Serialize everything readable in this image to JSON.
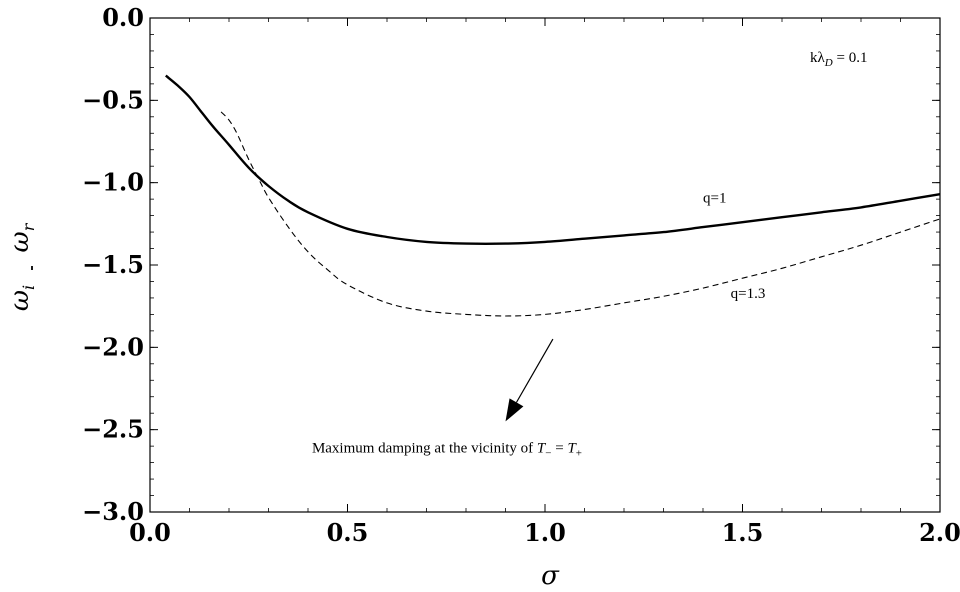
{
  "chart_data": {
    "type": "line",
    "xlabel": "σ",
    "ylabel": {
      "numerator": "ω",
      "numerator_sub": "i",
      "denominator": "ω",
      "denominator_sub": "r"
    },
    "xlim": [
      0.0,
      2.0
    ],
    "ylim": [
      -3.0,
      0.0
    ],
    "x_ticks": [
      "0.0",
      "0.5",
      "1.0",
      "1.5",
      "2.0"
    ],
    "y_ticks": [
      "0.0",
      "−0.5",
      "−1.0",
      "−1.5",
      "−2.0",
      "−2.5",
      "−3.0"
    ],
    "grid": false,
    "series": [
      {
        "name": "q=1",
        "style": "solid",
        "color": "#000000",
        "x": [
          0.04,
          0.07,
          0.1,
          0.13,
          0.16,
          0.2,
          0.25,
          0.3,
          0.35,
          0.4,
          0.5,
          0.6,
          0.7,
          0.8,
          0.9,
          1.0,
          1.1,
          1.2,
          1.3,
          1.4,
          1.5,
          1.6,
          1.7,
          1.8,
          1.9,
          2.0
        ],
        "y": [
          -0.35,
          -0.41,
          -0.48,
          -0.57,
          -0.66,
          -0.77,
          -0.91,
          -1.02,
          -1.11,
          -1.18,
          -1.28,
          -1.33,
          -1.36,
          -1.37,
          -1.37,
          -1.36,
          -1.34,
          -1.32,
          -1.3,
          -1.27,
          -1.24,
          -1.21,
          -1.18,
          -1.15,
          -1.11,
          -1.07
        ]
      },
      {
        "name": "q=1.3",
        "style": "dashed",
        "color": "#000000",
        "x": [
          0.18,
          0.2,
          0.22,
          0.25,
          0.28,
          0.3,
          0.35,
          0.4,
          0.45,
          0.5,
          0.6,
          0.7,
          0.8,
          0.9,
          1.0,
          1.1,
          1.2,
          1.3,
          1.4,
          1.5,
          1.6,
          1.7,
          1.8,
          1.9,
          2.0
        ],
        "y": [
          -0.57,
          -0.62,
          -0.7,
          -0.86,
          -1.0,
          -1.09,
          -1.27,
          -1.42,
          -1.53,
          -1.62,
          -1.73,
          -1.78,
          -1.8,
          -1.81,
          -1.8,
          -1.77,
          -1.73,
          -1.69,
          -1.64,
          -1.58,
          -1.52,
          -1.45,
          -1.38,
          -1.3,
          -1.22
        ]
      }
    ],
    "annotations": {
      "corner_label": {
        "prefix": "kλ",
        "sub": "D",
        "suffix": " = 0.1"
      },
      "series_labels": [
        {
          "text": "q=1",
          "x": 1.4,
          "y": -1.12
        },
        {
          "text": "q=1.3",
          "x": 1.47,
          "y": -1.7
        }
      ],
      "note": {
        "text": "Maximum damping at the vicinity of ",
        "t1": "T",
        "t1_sub": "−",
        "eq": " = ",
        "t2": "T",
        "t2_sub": "+",
        "x": 0.41,
        "y": -2.64
      },
      "arrow": {
        "from": [
          1.02,
          -1.95
        ],
        "to": [
          0.9,
          -2.45
        ]
      }
    }
  }
}
